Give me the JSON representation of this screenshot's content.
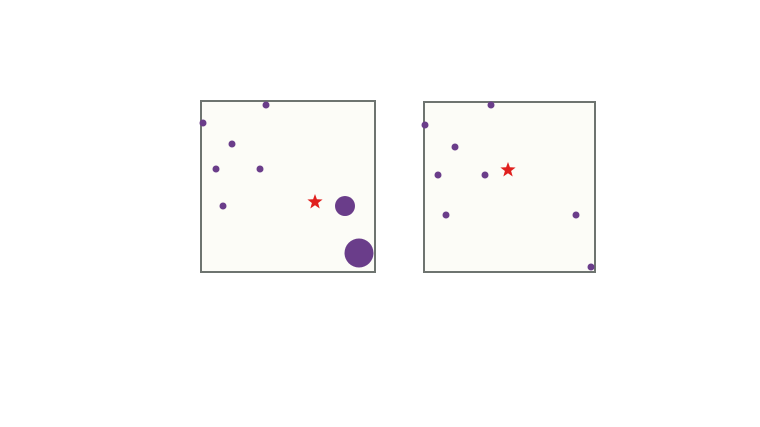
{
  "colors": {
    "background": "#ffffff",
    "panel_fill": "#fcfcf7",
    "panel_border": "#6e7470",
    "dot": "#6a3d8a",
    "star": "#e0201e"
  },
  "panels": [
    {
      "name": "left-panel",
      "dot_sizes": [
        "small",
        "small",
        "small",
        "small",
        "small",
        "small",
        "medium",
        "large"
      ],
      "star_count": 1
    },
    {
      "name": "right-panel",
      "dot_sizes": [
        "small",
        "small",
        "small",
        "small",
        "small",
        "small",
        "small",
        "small"
      ],
      "star_count": 1
    }
  ]
}
